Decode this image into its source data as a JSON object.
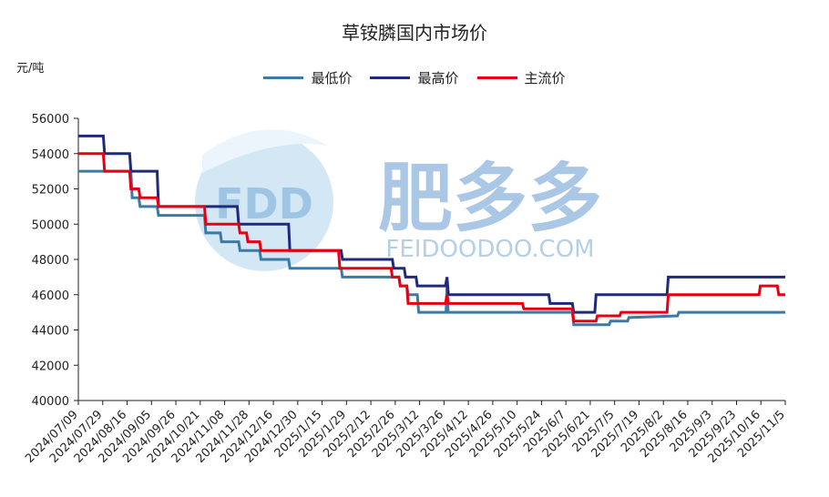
{
  "chart_data": {
    "type": "line",
    "title": "草铵膦国内市场价",
    "ylabel": "元/吨",
    "xlabel": "",
    "ylim": [
      40000,
      56000
    ],
    "yticks": [
      40000,
      42000,
      44000,
      46000,
      48000,
      50000,
      52000,
      54000,
      56000
    ],
    "grid": false,
    "legend_position": "top",
    "x_tick_labels": [
      "2024/07/09",
      "2024/07/29",
      "2024/08/16",
      "2024/09/05",
      "2024/09/26",
      "2024/10/21",
      "2024/11/08",
      "2024/11/28",
      "2024/12/16",
      "2024/12/30",
      "2025/1/15",
      "2025/1/29",
      "2025/2/12",
      "2025/2/26",
      "2025/3/12",
      "2025/3/26",
      "2025/4/12",
      "2025/4/26",
      "2025/5/10",
      "2025/5/24",
      "2025/6/7",
      "2025/6/21",
      "2025/7/5",
      "2025/7/19",
      "2025/8/2",
      "2025/8/16",
      "2025/9/3",
      "2025/9/23",
      "2025/10/16",
      "2025/11/5"
    ],
    "series": [
      {
        "name": "最低价",
        "color": "#3b7aa6",
        "points": [
          [
            0,
            53000
          ],
          [
            2,
            53000
          ],
          [
            2.05,
            51500
          ],
          [
            2.3,
            51500
          ],
          [
            2.35,
            51000
          ],
          [
            3,
            51000
          ],
          [
            3.05,
            50500
          ],
          [
            4.8,
            50500
          ],
          [
            4.85,
            49500
          ],
          [
            5.4,
            49500
          ],
          [
            5.45,
            49000
          ],
          [
            6.1,
            49000
          ],
          [
            6.15,
            48500
          ],
          [
            6.9,
            48500
          ],
          [
            6.95,
            48000
          ],
          [
            8,
            48000
          ],
          [
            8.05,
            47500
          ],
          [
            10,
            47500
          ],
          [
            10.05,
            47000
          ],
          [
            12.2,
            47000
          ],
          [
            12.25,
            46500
          ],
          [
            12.5,
            46500
          ],
          [
            12.55,
            46000
          ],
          [
            12.9,
            46000
          ],
          [
            12.95,
            45000
          ],
          [
            13.99,
            45000
          ],
          [
            14.03,
            46500
          ],
          [
            14.07,
            45000
          ],
          [
            18.2,
            45000
          ],
          [
            18.25,
            45000
          ],
          [
            18.8,
            45000
          ],
          [
            18.85,
            44300
          ],
          [
            20.2,
            44300
          ],
          [
            20.25,
            44500
          ],
          [
            20.9,
            44500
          ],
          [
            20.95,
            44700
          ],
          [
            22.8,
            44800
          ],
          [
            22.85,
            45000
          ],
          [
            26.9,
            45000
          ]
        ]
      },
      {
        "name": "最高价",
        "color": "#1f2a7a",
        "points": [
          [
            0,
            55000
          ],
          [
            0.95,
            55000
          ],
          [
            1,
            54000
          ],
          [
            1.95,
            54000
          ],
          [
            2,
            53000
          ],
          [
            3,
            53000
          ],
          [
            3.05,
            51000
          ],
          [
            6.05,
            51000
          ],
          [
            6.1,
            50000
          ],
          [
            8,
            50000
          ],
          [
            8.05,
            48500
          ],
          [
            10,
            48500
          ],
          [
            10.05,
            48000
          ],
          [
            11.95,
            48000
          ],
          [
            12,
            47500
          ],
          [
            12.4,
            47500
          ],
          [
            12.45,
            47000
          ],
          [
            12.85,
            47000
          ],
          [
            12.9,
            46500
          ],
          [
            13.97,
            46500
          ],
          [
            14.03,
            47000
          ],
          [
            14.08,
            46000
          ],
          [
            16.9,
            46000
          ],
          [
            16.95,
            46000
          ],
          [
            17.9,
            46000
          ],
          [
            17.95,
            45500
          ],
          [
            18.8,
            45500
          ],
          [
            18.85,
            45000
          ],
          [
            19.65,
            45000
          ],
          [
            19.7,
            46000
          ],
          [
            22.4,
            46000
          ],
          [
            22.45,
            47000
          ],
          [
            26.9,
            47000
          ]
        ]
      },
      {
        "name": "主流价",
        "color": "#e60012",
        "points": [
          [
            0,
            54000
          ],
          [
            0.95,
            54000
          ],
          [
            1,
            53000
          ],
          [
            1.95,
            53000
          ],
          [
            2,
            52000
          ],
          [
            2.3,
            52000
          ],
          [
            2.35,
            51500
          ],
          [
            3,
            51500
          ],
          [
            3.05,
            51000
          ],
          [
            4.8,
            51000
          ],
          [
            4.85,
            50000
          ],
          [
            6.1,
            50000
          ],
          [
            6.15,
            49500
          ],
          [
            6.4,
            49500
          ],
          [
            6.45,
            49000
          ],
          [
            6.9,
            49000
          ],
          [
            6.95,
            48500
          ],
          [
            9.9,
            48500
          ],
          [
            9.95,
            47500
          ],
          [
            11.9,
            47500
          ],
          [
            11.95,
            47000
          ],
          [
            12.2,
            47000
          ],
          [
            12.25,
            46500
          ],
          [
            12.5,
            46500
          ],
          [
            12.55,
            45500
          ],
          [
            13.97,
            45500
          ],
          [
            14.03,
            46000
          ],
          [
            14.08,
            45500
          ],
          [
            16.9,
            45500
          ],
          [
            16.95,
            45200
          ],
          [
            18.8,
            45200
          ],
          [
            18.85,
            44500
          ],
          [
            19.7,
            44500
          ],
          [
            19.75,
            44800
          ],
          [
            20.6,
            44800
          ],
          [
            20.65,
            45000
          ],
          [
            22.4,
            45000
          ],
          [
            22.45,
            46000
          ],
          [
            25.9,
            46000
          ],
          [
            25.95,
            46500
          ],
          [
            26.6,
            46500
          ],
          [
            26.65,
            46000
          ],
          [
            26.9,
            46000
          ]
        ]
      }
    ]
  },
  "watermark": {
    "logo_text": "FDD",
    "brand_cn": "肥多多",
    "brand_en": "FEIDOODOO.COM"
  },
  "colors": {
    "axis": "#222222",
    "watermark_blue": "#7fb2dc",
    "watermark_light": "#c6dff2"
  }
}
